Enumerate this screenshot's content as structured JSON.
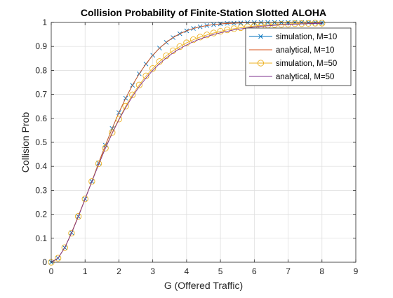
{
  "chart_data": {
    "type": "line",
    "title": "Collision Probability of Finite-Station Slotted ALOHA",
    "xlabel": "G (Offered Traffic)",
    "ylabel": "Collision Prob",
    "xlim": [
      0,
      9
    ],
    "ylim": [
      0,
      1
    ],
    "xticks": [
      "0",
      "1",
      "2",
      "3",
      "4",
      "5",
      "6",
      "7",
      "8",
      "9"
    ],
    "yticks": [
      "0",
      "0.1",
      "0.2",
      "0.3",
      "0.4",
      "0.5",
      "0.6",
      "0.7",
      "0.8",
      "0.9",
      "1"
    ],
    "grid": true,
    "legend_position": "top-right",
    "x": [
      0,
      0.2,
      0.4,
      0.6,
      0.8,
      1.0,
      1.2,
      1.4,
      1.6,
      1.8,
      2.0,
      2.2,
      2.4,
      2.6,
      2.8,
      3.0,
      3.2,
      3.4,
      3.6,
      3.8,
      4.0,
      4.2,
      4.4,
      4.6,
      4.8,
      5.0,
      5.2,
      5.4,
      5.6,
      5.8,
      6.0,
      6.2,
      6.4,
      6.6,
      6.8,
      7.0,
      7.2,
      7.4,
      7.6,
      7.8,
      8.0
    ],
    "series": [
      {
        "name": "simulation, M=10",
        "color": "#0072BD",
        "style": "line-marker-x",
        "values": [
          0,
          0.017,
          0.061,
          0.123,
          0.191,
          0.264,
          0.337,
          0.414,
          0.488,
          0.558,
          0.624,
          0.684,
          0.738,
          0.786,
          0.827,
          0.863,
          0.893,
          0.917,
          0.937,
          0.953,
          0.965,
          0.975,
          0.982,
          0.987,
          0.991,
          0.994,
          0.996,
          0.997,
          0.998,
          0.999,
          0.999,
          1.0,
          1.0,
          1.0,
          1.0,
          1.0,
          1.0,
          1.0,
          1.0,
          1.0,
          1.0
        ]
      },
      {
        "name": "analytical, M=10",
        "color": "#D95319",
        "style": "line",
        "values": [
          0,
          0.017,
          0.061,
          0.123,
          0.193,
          0.264,
          0.337,
          0.414,
          0.488,
          0.557,
          0.624,
          0.684,
          0.738,
          0.786,
          0.827,
          0.863,
          0.893,
          0.917,
          0.937,
          0.953,
          0.965,
          0.975,
          0.982,
          0.987,
          0.991,
          0.994,
          0.996,
          0.997,
          0.998,
          0.999,
          0.999,
          1.0,
          1.0,
          1.0,
          1.0,
          1.0,
          1.0,
          1.0,
          1.0,
          1.0,
          1.0
        ]
      },
      {
        "name": "simulation, M=50",
        "color": "#EDB120",
        "style": "line-marker-circle",
        "values": [
          0,
          0.017,
          0.061,
          0.121,
          0.191,
          0.264,
          0.337,
          0.411,
          0.476,
          0.541,
          0.597,
          0.651,
          0.698,
          0.739,
          0.777,
          0.808,
          0.837,
          0.861,
          0.882,
          0.899,
          0.915,
          0.928,
          0.939,
          0.948,
          0.956,
          0.963,
          0.969,
          0.974,
          0.978,
          0.982,
          0.985,
          0.987,
          0.989,
          0.991,
          0.992,
          0.993,
          0.995,
          0.995,
          0.996,
          0.997,
          0.997
        ]
      },
      {
        "name": "analytical, M=50",
        "color": "#7E2F8E",
        "style": "line",
        "values": [
          0,
          0.017,
          0.061,
          0.121,
          0.19,
          0.263,
          0.336,
          0.407,
          0.475,
          0.537,
          0.594,
          0.645,
          0.691,
          0.732,
          0.768,
          0.8,
          0.828,
          0.852,
          0.873,
          0.891,
          0.906,
          0.92,
          0.931,
          0.941,
          0.95,
          0.957,
          0.963,
          0.969,
          0.973,
          0.977,
          0.981,
          0.984,
          0.986,
          0.988,
          0.99,
          0.992,
          0.993,
          0.994,
          0.995,
          0.996,
          0.996
        ]
      }
    ]
  }
}
